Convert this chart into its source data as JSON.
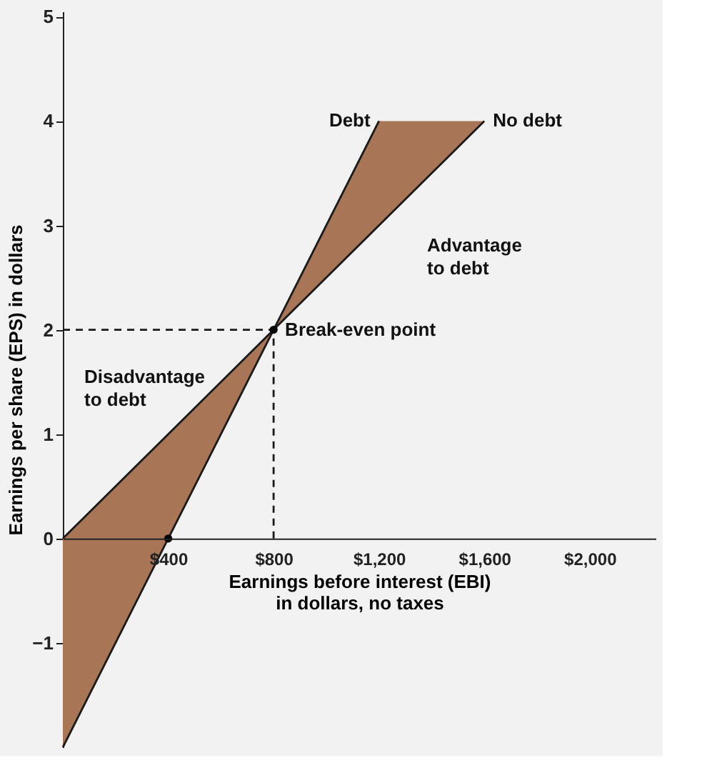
{
  "chart_data": {
    "type": "line",
    "xlabel": "Earnings before interest (EBI)\nin dollars, no taxes",
    "ylabel": "Earnings per share (EPS) in dollars",
    "xlim": [
      0,
      2250
    ],
    "ylim": [
      -2,
      5.05
    ],
    "xticks": [
      {
        "value": 400,
        "label": "$400"
      },
      {
        "value": 800,
        "label": "$800"
      },
      {
        "value": 1200,
        "label": "$1,200"
      },
      {
        "value": 1600,
        "label": "$1,600"
      },
      {
        "value": 2000,
        "label": "$2,000"
      }
    ],
    "yticks": [
      {
        "value": -1,
        "label": "−1"
      },
      0,
      1,
      2,
      3,
      4,
      5
    ],
    "grid": false,
    "series": [
      {
        "name": "No debt",
        "color": "#1a1a1a",
        "line_style": "solid",
        "x": [
          0,
          800,
          1200,
          1600
        ],
        "values": [
          0,
          2,
          3,
          4
        ],
        "lower": [
          -2,
          2,
          3,
          4
        ],
        "upper": [
          0,
          2,
          4,
          4
        ]
      },
      {
        "name": "Debt",
        "color": "#1a1a1a",
        "line_style": "solid",
        "x": [
          0,
          1200
        ],
        "values": [
          -2,
          4
        ]
      },
      {
        "color": "#1a1a1a",
        "line_style": "dashed",
        "x": [
          0,
          800
        ],
        "values": [
          2,
          2
        ]
      },
      {
        "color": "#1a1a1a",
        "line_style": "dashed",
        "x": [
          800,
          800
        ],
        "values": [
          0,
          2
        ]
      },
      {
        "type": "scatter",
        "color": "#000000",
        "marker": "circle",
        "x": [
          400,
          800
        ],
        "values": [
          0,
          2
        ]
      }
    ],
    "annotations": [
      {
        "text": "Break-even point",
        "x": 800,
        "y": 2
      },
      "Advantage\nto debt",
      "Disadvantage\nto debt"
    ]
  }
}
